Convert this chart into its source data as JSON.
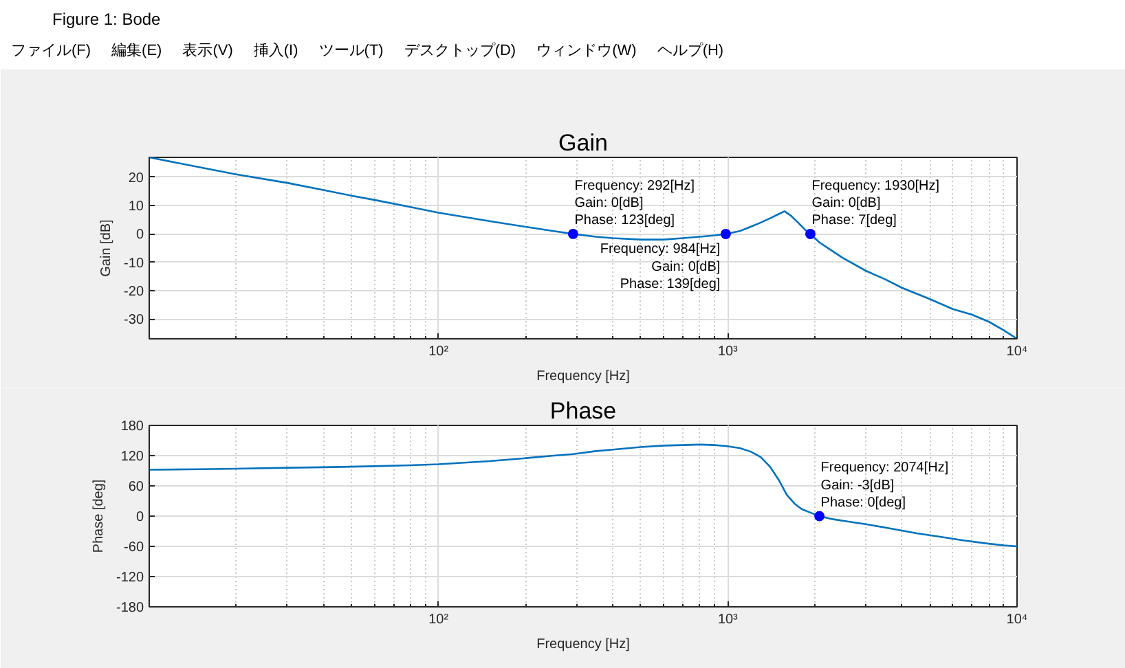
{
  "chart_data": [
    {
      "type": "other",
      "title": "Figure 1: Bode",
      "annotations": [
        "ファイル(F)",
        "編集(E)",
        "表示(V)",
        "挿入(I)",
        "ツール(T)",
        "デスクトップ(D)",
        "ウィンドウ(W)",
        "ヘルプ(H)"
      ]
    },
    {
      "type": "line",
      "title": "Gain",
      "xlabel": "Frequency [Hz]",
      "ylabel": "Gain [dB]",
      "log": "x",
      "xlim": [
        10,
        10000
      ],
      "xticks": [
        {
          "value": 100,
          "label": "10²"
        },
        {
          "value": 1000,
          "label": "10³"
        },
        {
          "value": 10000,
          "label": "10⁴"
        }
      ],
      "ylim": [
        -37,
        27
      ],
      "yticks": [
        -30,
        -20,
        -10,
        0,
        10,
        20
      ],
      "grid": true,
      "series": [
        {
          "color": "#0072bd",
          "x": [
            10,
            15,
            20,
            30,
            40,
            50,
            60,
            80,
            100,
            150,
            200,
            250,
            292,
            350,
            400,
            500,
            600,
            700,
            800,
            900,
            984,
            1100,
            1200,
            1300,
            1400,
            1500,
            1571,
            1650,
            1750,
            1850,
            1930,
            2074,
            2181,
            2500,
            3000,
            3500,
            4000,
            5000,
            6000,
            7000,
            8000,
            9000,
            10000
          ],
          "values": [
            27,
            23.5,
            21,
            18,
            15.5,
            13.5,
            12,
            9.5,
            7.5,
            4.5,
            2.5,
            1,
            0,
            -1,
            -1.5,
            -2,
            -2,
            -1.5,
            -1,
            -0.5,
            0,
            1,
            2.5,
            4,
            5.5,
            7,
            8,
            6.5,
            4,
            1.5,
            0,
            -3,
            -4.5,
            -8.5,
            -13,
            -16,
            -19,
            -23,
            -26.5,
            -28.5,
            -31,
            -34,
            -37
          ]
        },
        {
          "type": "scatter",
          "marker": "circle",
          "color": "#0000ff",
          "x": [
            292,
            984,
            1930
          ],
          "values": [
            0,
            0,
            0
          ]
        }
      ],
      "annotations": [
        {
          "text": "Frequency: 292[Hz]\nGain: 0[dB]\nPhase: 123[deg]",
          "x": 292,
          "y": 0
        },
        {
          "text": "Frequency: 984[Hz]\nGain: 0[dB]\nPhase: 139[deg]",
          "x": 984,
          "y": 0
        },
        {
          "text": "Frequency: 1930[Hz]\nGain: 0[dB]\nPhase: 7[deg]",
          "x": 1930,
          "y": 0
        }
      ]
    },
    {
      "type": "line",
      "title": "Phase",
      "xlabel": "Frequency [Hz]",
      "ylabel": "Phase [deg]",
      "log": "x",
      "xlim": [
        10,
        10000
      ],
      "xticks": [
        {
          "value": 100,
          "label": "10²"
        },
        {
          "value": 1000,
          "label": "10³"
        },
        {
          "value": 10000,
          "label": "10⁴"
        }
      ],
      "ylim": [
        -180,
        180
      ],
      "yticks": [
        -180,
        -120,
        -60,
        0,
        60,
        120,
        180
      ],
      "grid": true,
      "series": [
        {
          "color": "#0072bd",
          "x": [
            10,
            15,
            20,
            30,
            40,
            60,
            80,
            100,
            150,
            200,
            250,
            292,
            350,
            400,
            500,
            600,
            700,
            800,
            900,
            984,
            1100,
            1200,
            1300,
            1400,
            1500,
            1600,
            1700,
            1800,
            1930,
            2074,
            2300,
            2613,
            3000,
            3763,
            4500,
            5418,
            6500,
            7799,
            9000,
            10000
          ],
          "values": [
            92,
            93,
            94,
            96,
            97,
            99,
            101,
            103,
            109,
            115,
            120,
            123,
            129,
            132,
            137,
            140,
            141,
            142,
            141,
            139,
            135,
            128,
            117,
            98,
            72,
            42,
            25,
            14,
            7,
            0,
            -6,
            -11,
            -16,
            -26,
            -34,
            -41,
            -48,
            -54,
            -58,
            -60
          ]
        },
        {
          "type": "scatter",
          "marker": "circle",
          "color": "#0000ff",
          "x": [
            2074
          ],
          "values": [
            0
          ]
        }
      ],
      "annotations": [
        {
          "text": "Frequency: 2074[Hz]\nGain: -3[dB]\nPhase: 0[deg]",
          "x": 2074,
          "y": 0
        }
      ]
    }
  ]
}
